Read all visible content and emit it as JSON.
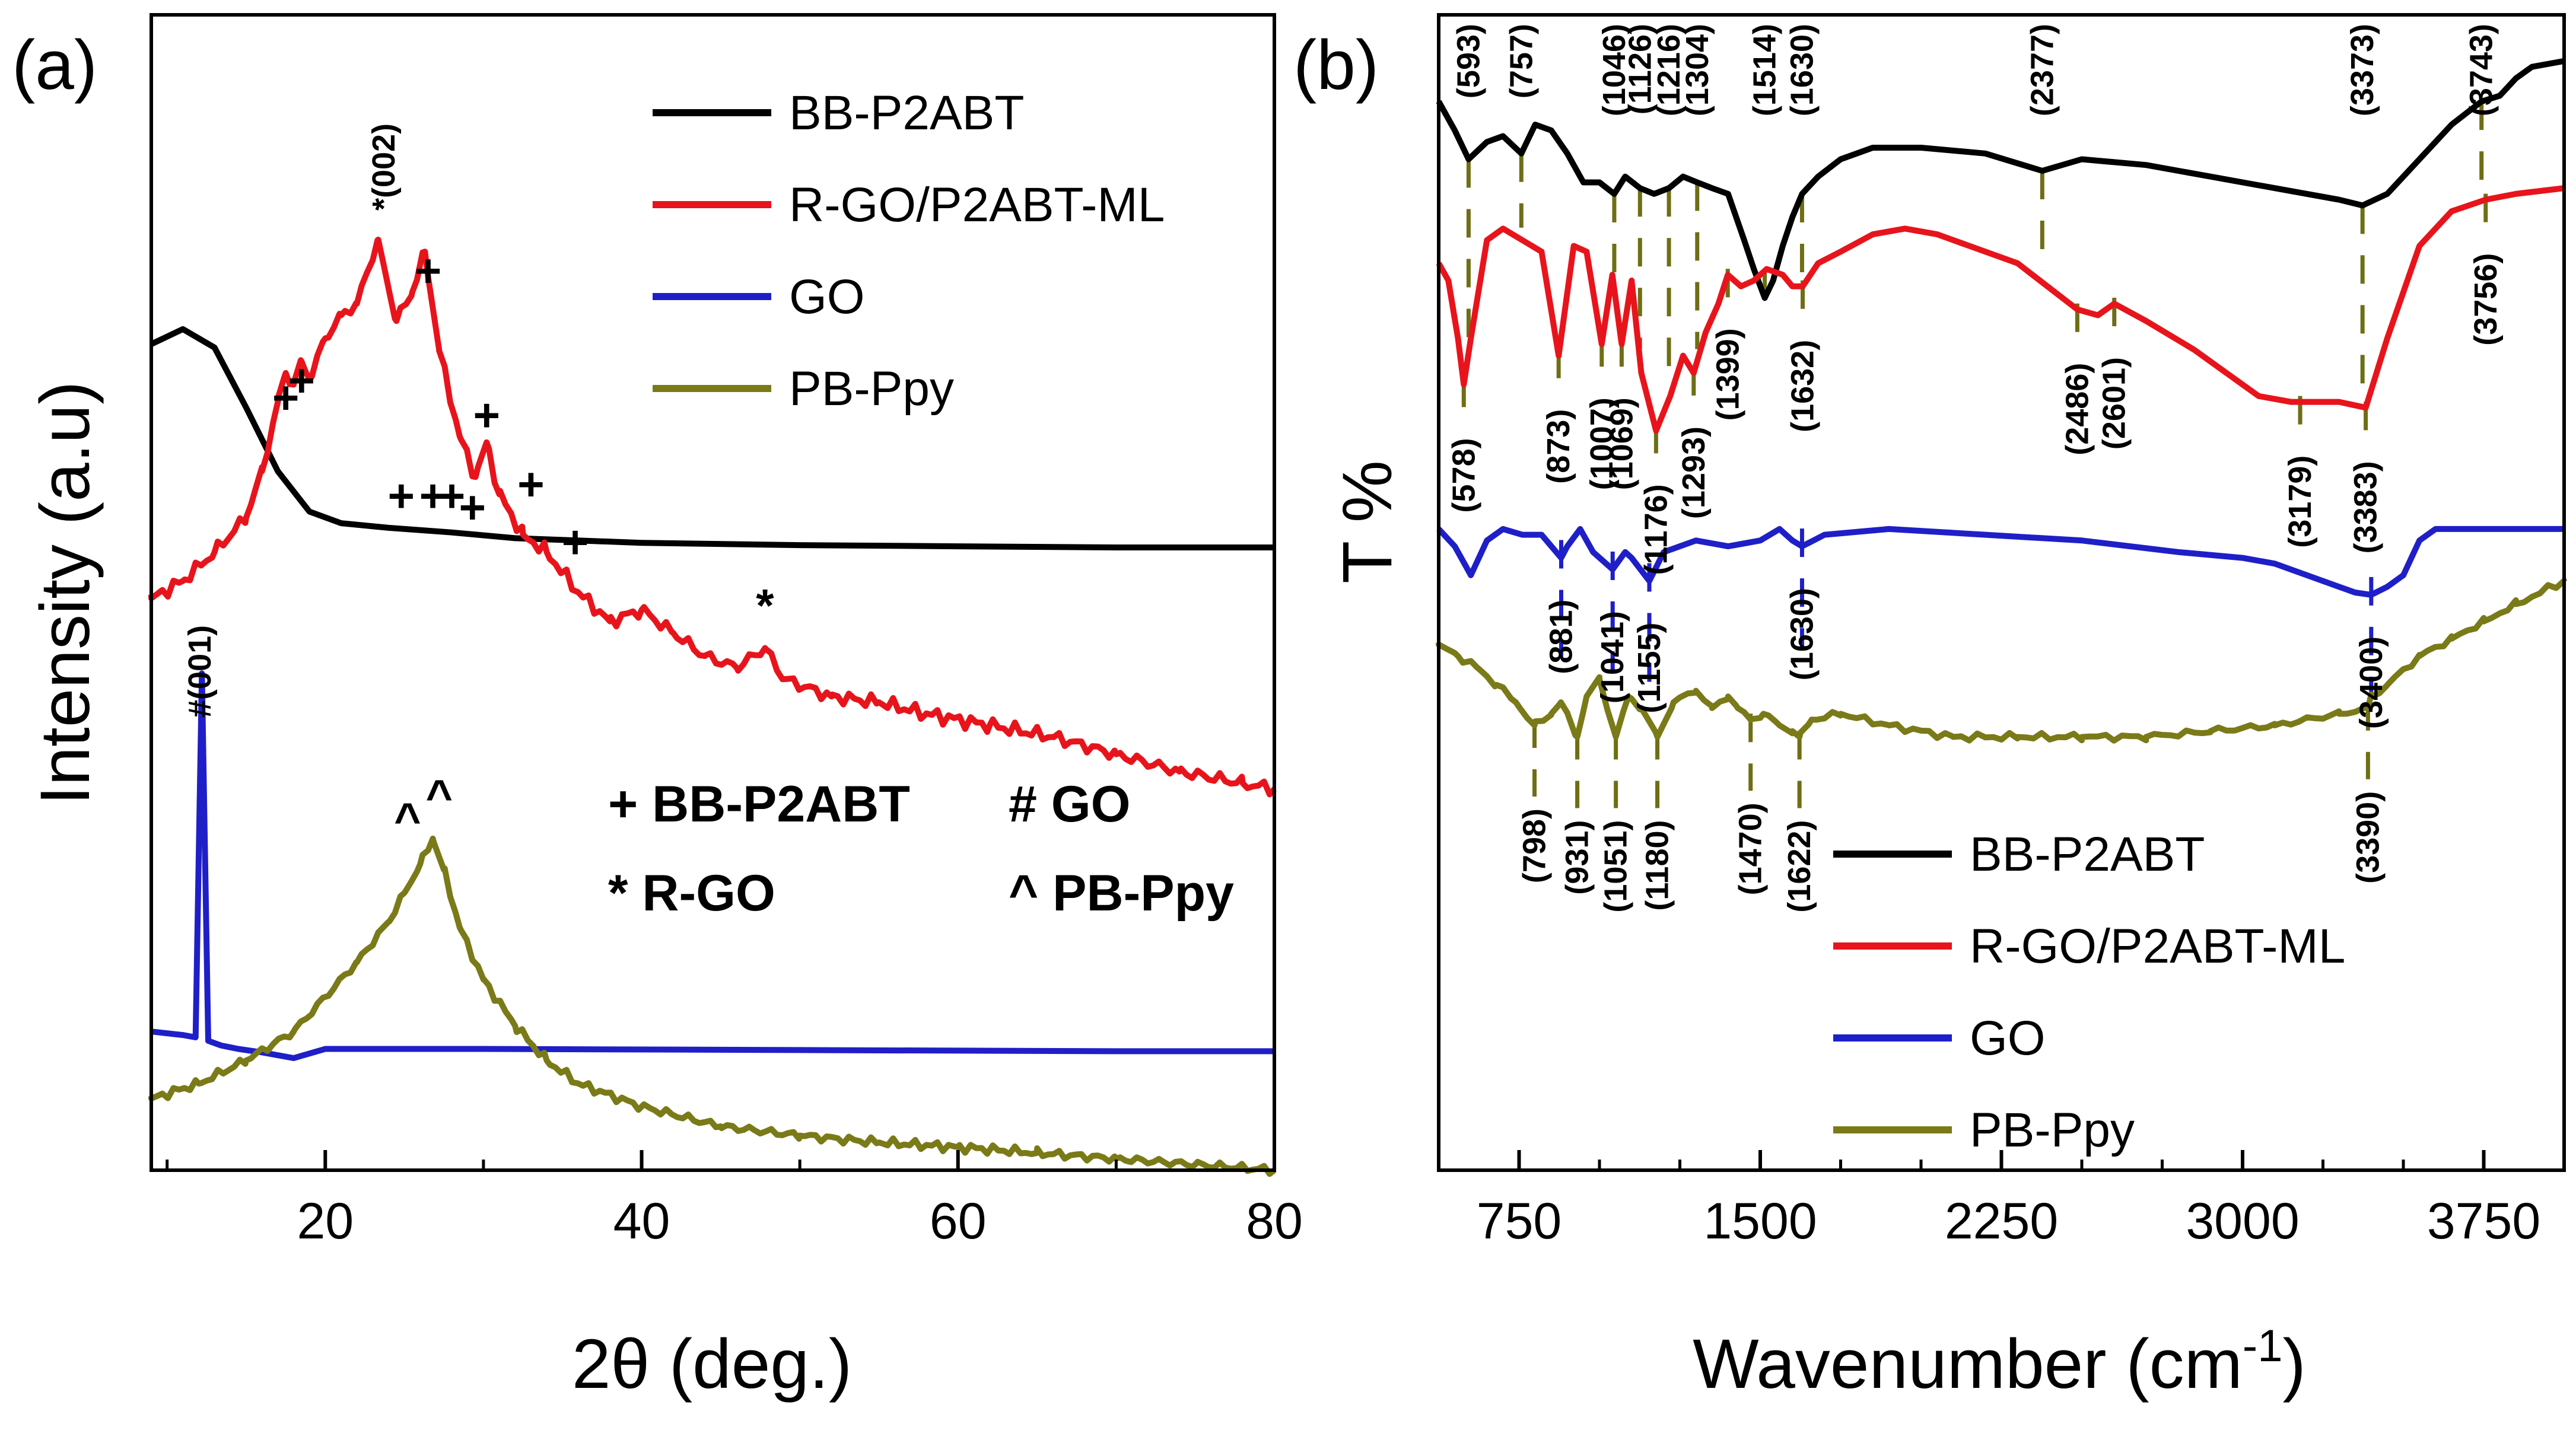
{
  "figure": {
    "panel_a_label": "(a)",
    "panel_b_label": "(b)",
    "marker_legend": {
      "bb": "+ BB-P2ABT",
      "go": "# GO",
      "rgo": "* R-GO",
      "ppy": "^ PB-Ppy"
    },
    "panel_a_peak_labels": {
      "go001": "#(001)",
      "rgo002": "*(002)"
    },
    "colors": {
      "BB-P2ABT": "#000000",
      "R-GO/P2ABT-ML": "#e8141c",
      "GO": "#1f1fc8",
      "PB-Ppy": "#7a7a18",
      "dash": "#6e6e14"
    }
  },
  "chart_data": [
    {
      "type": "line",
      "panel": "a",
      "title": "",
      "xlabel": "2θ (deg.)",
      "ylabel": "Intensity (a.u)",
      "xlim": [
        9,
        80
      ],
      "ylim": [
        0,
        100
      ],
      "xticks": [
        20,
        40,
        60,
        80
      ],
      "grid": false,
      "legend_position": "top-right",
      "series": [
        {
          "name": "BB-P2ABT",
          "x": [
            9,
            11,
            13,
            15,
            17,
            19,
            21,
            24,
            28,
            32,
            40,
            50,
            60,
            70,
            80
          ],
          "y": [
            71.5,
            72.8,
            71.2,
            66.0,
            60.5,
            57.0,
            56.0,
            55.6,
            55.2,
            54.7,
            54.3,
            54.1,
            54.0,
            53.9,
            53.9
          ]
        },
        {
          "name": "R-GO/P2ABT-ML",
          "x": [
            9,
            11,
            13,
            15,
            16,
            17,
            17.5,
            18,
            18.5,
            19,
            20,
            21,
            22,
            23.3,
            24.5,
            25.5,
            26.3,
            27.2,
            28.5,
            29.5,
            30.2,
            31,
            32.5,
            34,
            36,
            38,
            40,
            42,
            44,
            46,
            47.8,
            49,
            52,
            55,
            58,
            62,
            66,
            70,
            74,
            78,
            80
          ],
          "y": [
            49.5,
            51,
            53.5,
            56.5,
            60.5,
            66.5,
            69,
            68,
            70,
            68.5,
            72,
            74,
            75,
            80.5,
            73.5,
            76,
            79.5,
            71,
            63.5,
            60,
            63,
            58.5,
            55,
            53.5,
            50,
            47.5,
            48.5,
            46.5,
            44.5,
            43.5,
            45.2,
            42.5,
            41,
            40.5,
            39.5,
            38.5,
            37.5,
            36,
            34.5,
            33.5,
            33
          ]
        },
        {
          "name": "GO",
          "x": [
            9,
            11,
            11.8,
            12.2,
            12.6,
            13.4,
            14.5,
            16,
            18,
            20,
            30,
            50,
            70,
            80
          ],
          "y": [
            12,
            11.7,
            11.5,
            43,
            11.2,
            10.8,
            10.5,
            10.2,
            9.7,
            10.5,
            10.5,
            10.4,
            10.3,
            10.3
          ]
        },
        {
          "name": "PB-Ppy",
          "x": [
            9,
            12,
            15,
            18,
            20,
            22,
            24,
            25,
            26,
            26.8,
            27.5,
            28.5,
            30,
            32,
            34,
            36,
            40,
            45,
            50,
            55,
            60,
            65,
            70,
            75,
            80
          ],
          "y": [
            6.2,
            7.5,
            9.5,
            12,
            15,
            18,
            21.5,
            24,
            26.5,
            28.7,
            26,
            21,
            16.5,
            12.5,
            9.5,
            7.5,
            5.5,
            3.8,
            3.0,
            2.4,
            2.0,
            1.5,
            1.0,
            0.5,
            0
          ]
        }
      ],
      "annotations": {
        "bb_markers": [
          [
            17.5,
            65.5
          ],
          [
            18.5,
            67
          ],
          [
            26.5,
            76.5
          ],
          [
            30.2,
            64
          ],
          [
            33,
            58
          ],
          [
            24.8,
            57
          ],
          [
            26.8,
            57
          ],
          [
            28,
            57
          ],
          [
            29.3,
            56
          ],
          [
            35.8,
            53
          ]
        ],
        "rgo_markers": [
          [
            47.8,
            47.5
          ]
        ],
        "ppy_markers": [
          [
            25.2,
            29
          ],
          [
            27.2,
            31
          ]
        ],
        "go_peak": [
          12.2,
          43
        ],
        "rgo_peak": [
          23.3,
          81
        ]
      }
    },
    {
      "type": "line",
      "panel": "b",
      "title": "",
      "xlabel": "Wavenumber (cm",
      "xlabel_superscript": "-1",
      "xlabel_close": ")",
      "ylabel": "T %",
      "xlim": [
        500,
        4000
      ],
      "ylim": [
        0,
        100
      ],
      "xticks": [
        750,
        1500,
        2250,
        3000,
        3750
      ],
      "grid": false,
      "legend_position": "bottom-center",
      "series": [
        {
          "name": "BB-P2ABT",
          "x": [
            500,
            550,
            593,
            650,
            700,
            757,
            800,
            850,
            900,
            950,
            1000,
            1046,
            1080,
            1126,
            1170,
            1216,
            1260,
            1304,
            1350,
            1400,
            1450,
            1480,
            1514,
            1540,
            1570,
            1600,
            1630,
            1680,
            1750,
            1850,
            2000,
            2200,
            2377,
            2500,
            2700,
            2900,
            3100,
            3300,
            3373,
            3450,
            3550,
            3650,
            3743,
            3800,
            3850,
            3900,
            4000
          ],
          "y": [
            92.5,
            90,
            87.5,
            89,
            89.5,
            88,
            90.5,
            90,
            88,
            85.5,
            85.5,
            84.5,
            86,
            85,
            84.5,
            85,
            86,
            85.5,
            85,
            84.5,
            80.5,
            78,
            75.5,
            77,
            80,
            82.5,
            84.5,
            86,
            87.5,
            88.5,
            88.5,
            88,
            86.5,
            87.5,
            87,
            86,
            85,
            84,
            83.5,
            84.5,
            87.5,
            90.5,
            92.5,
            93,
            94.5,
            95.5,
            96
          ]
        },
        {
          "name": "R-GO/P2ABT-ML",
          "x": [
            500,
            530,
            560,
            578,
            600,
            650,
            700,
            760,
            820,
            873,
            920,
            960,
            1007,
            1040,
            1069,
            1100,
            1130,
            1176,
            1220,
            1260,
            1293,
            1330,
            1370,
            1399,
            1440,
            1480,
            1520,
            1570,
            1600,
            1632,
            1680,
            1750,
            1850,
            1950,
            2050,
            2150,
            2300,
            2486,
            2550,
            2601,
            2700,
            2850,
            2950,
            3050,
            3150,
            3179,
            3300,
            3383,
            3450,
            3550,
            3650,
            3756,
            3850,
            4000
          ],
          "y": [
            78.5,
            77,
            72,
            68,
            72,
            80.5,
            81.5,
            80.5,
            79.5,
            70.5,
            80,
            79.5,
            71.5,
            77.5,
            71.5,
            77,
            69,
            64,
            67,
            70.5,
            69,
            72.5,
            75,
            77.5,
            76.5,
            77,
            78,
            77.5,
            76.5,
            76.5,
            78.5,
            79.5,
            81,
            81.5,
            81,
            80,
            78.5,
            74.5,
            74,
            75,
            73.5,
            71,
            69,
            67,
            66.5,
            66.5,
            66.5,
            66,
            72,
            80,
            83,
            84,
            84.5,
            85
          ]
        },
        {
          "name": "GO",
          "x": [
            500,
            550,
            580,
            600,
            650,
            700,
            760,
            820,
            881,
            900,
            940,
            980,
            1041,
            1080,
            1100,
            1155,
            1200,
            1300,
            1400,
            1500,
            1560,
            1600,
            1630,
            1700,
            1900,
            2200,
            2500,
            2800,
            3000,
            3100,
            3200,
            3300,
            3350,
            3400,
            3450,
            3500,
            3550,
            3600,
            3700,
            3850,
            4000
          ],
          "y": [
            55.5,
            54,
            52.5,
            51.5,
            54.5,
            55.5,
            55,
            55,
            53,
            54,
            55.5,
            53.5,
            52,
            53.5,
            53,
            51,
            53.5,
            54.5,
            54,
            54.5,
            55.5,
            54.5,
            54,
            55,
            55.5,
            55,
            54.5,
            53.5,
            53,
            52.5,
            51.5,
            50.5,
            50,
            49.8,
            50.5,
            51.5,
            54.5,
            55.5,
            55.5,
            55.5,
            55.5
          ]
        },
        {
          "name": "PB-Ppy",
          "x": [
            500,
            560,
            620,
            680,
            740,
            798,
            850,
            880,
            931,
            960,
            1000,
            1051,
            1090,
            1130,
            1180,
            1230,
            1300,
            1350,
            1400,
            1430,
            1470,
            1510,
            1560,
            1600,
            1622,
            1660,
            1750,
            1900,
            2100,
            2300,
            2500,
            2700,
            2900,
            3100,
            3300,
            3390,
            3400,
            3450,
            3550,
            3650,
            3750,
            3850,
            4000
          ],
          "y": [
            45.5,
            44.5,
            43.5,
            42,
            40.5,
            38.5,
            39.5,
            40.5,
            37.5,
            41,
            42.5,
            37.5,
            41,
            40,
            37.5,
            40.5,
            41.5,
            40,
            41,
            40,
            39,
            39.5,
            38.5,
            38,
            37.5,
            39,
            39.5,
            38.5,
            37.5,
            37.5,
            37.5,
            37.5,
            38,
            38.5,
            39.5,
            40,
            41,
            42,
            44.5,
            46,
            47.5,
            49,
            51
          ]
        }
      ],
      "peak_labels_top": [
        "(593)",
        "(757)",
        "(1046)",
        "(1126)",
        "(1216)",
        "(1304)",
        "(1514)",
        "(1630)",
        "(2377)",
        "(3373)",
        "(3743)"
      ],
      "peak_labels_red": [
        "(578)",
        "(873)",
        "(1007)",
        "(1069)",
        "(1176)",
        "(1293)",
        "(1399)",
        "(1632)",
        "(2486)",
        "(2601)",
        "(3179)",
        "(3383)",
        "(3756)"
      ],
      "peak_labels_go": [
        "(881)",
        "(1041)",
        "(1155)",
        "(1630)",
        "(3400)"
      ],
      "peak_labels_ppy": [
        "(798)",
        "(931)",
        "(1051)",
        "(1180)",
        "(1470)",
        "(1622)",
        "(3390)"
      ]
    }
  ]
}
